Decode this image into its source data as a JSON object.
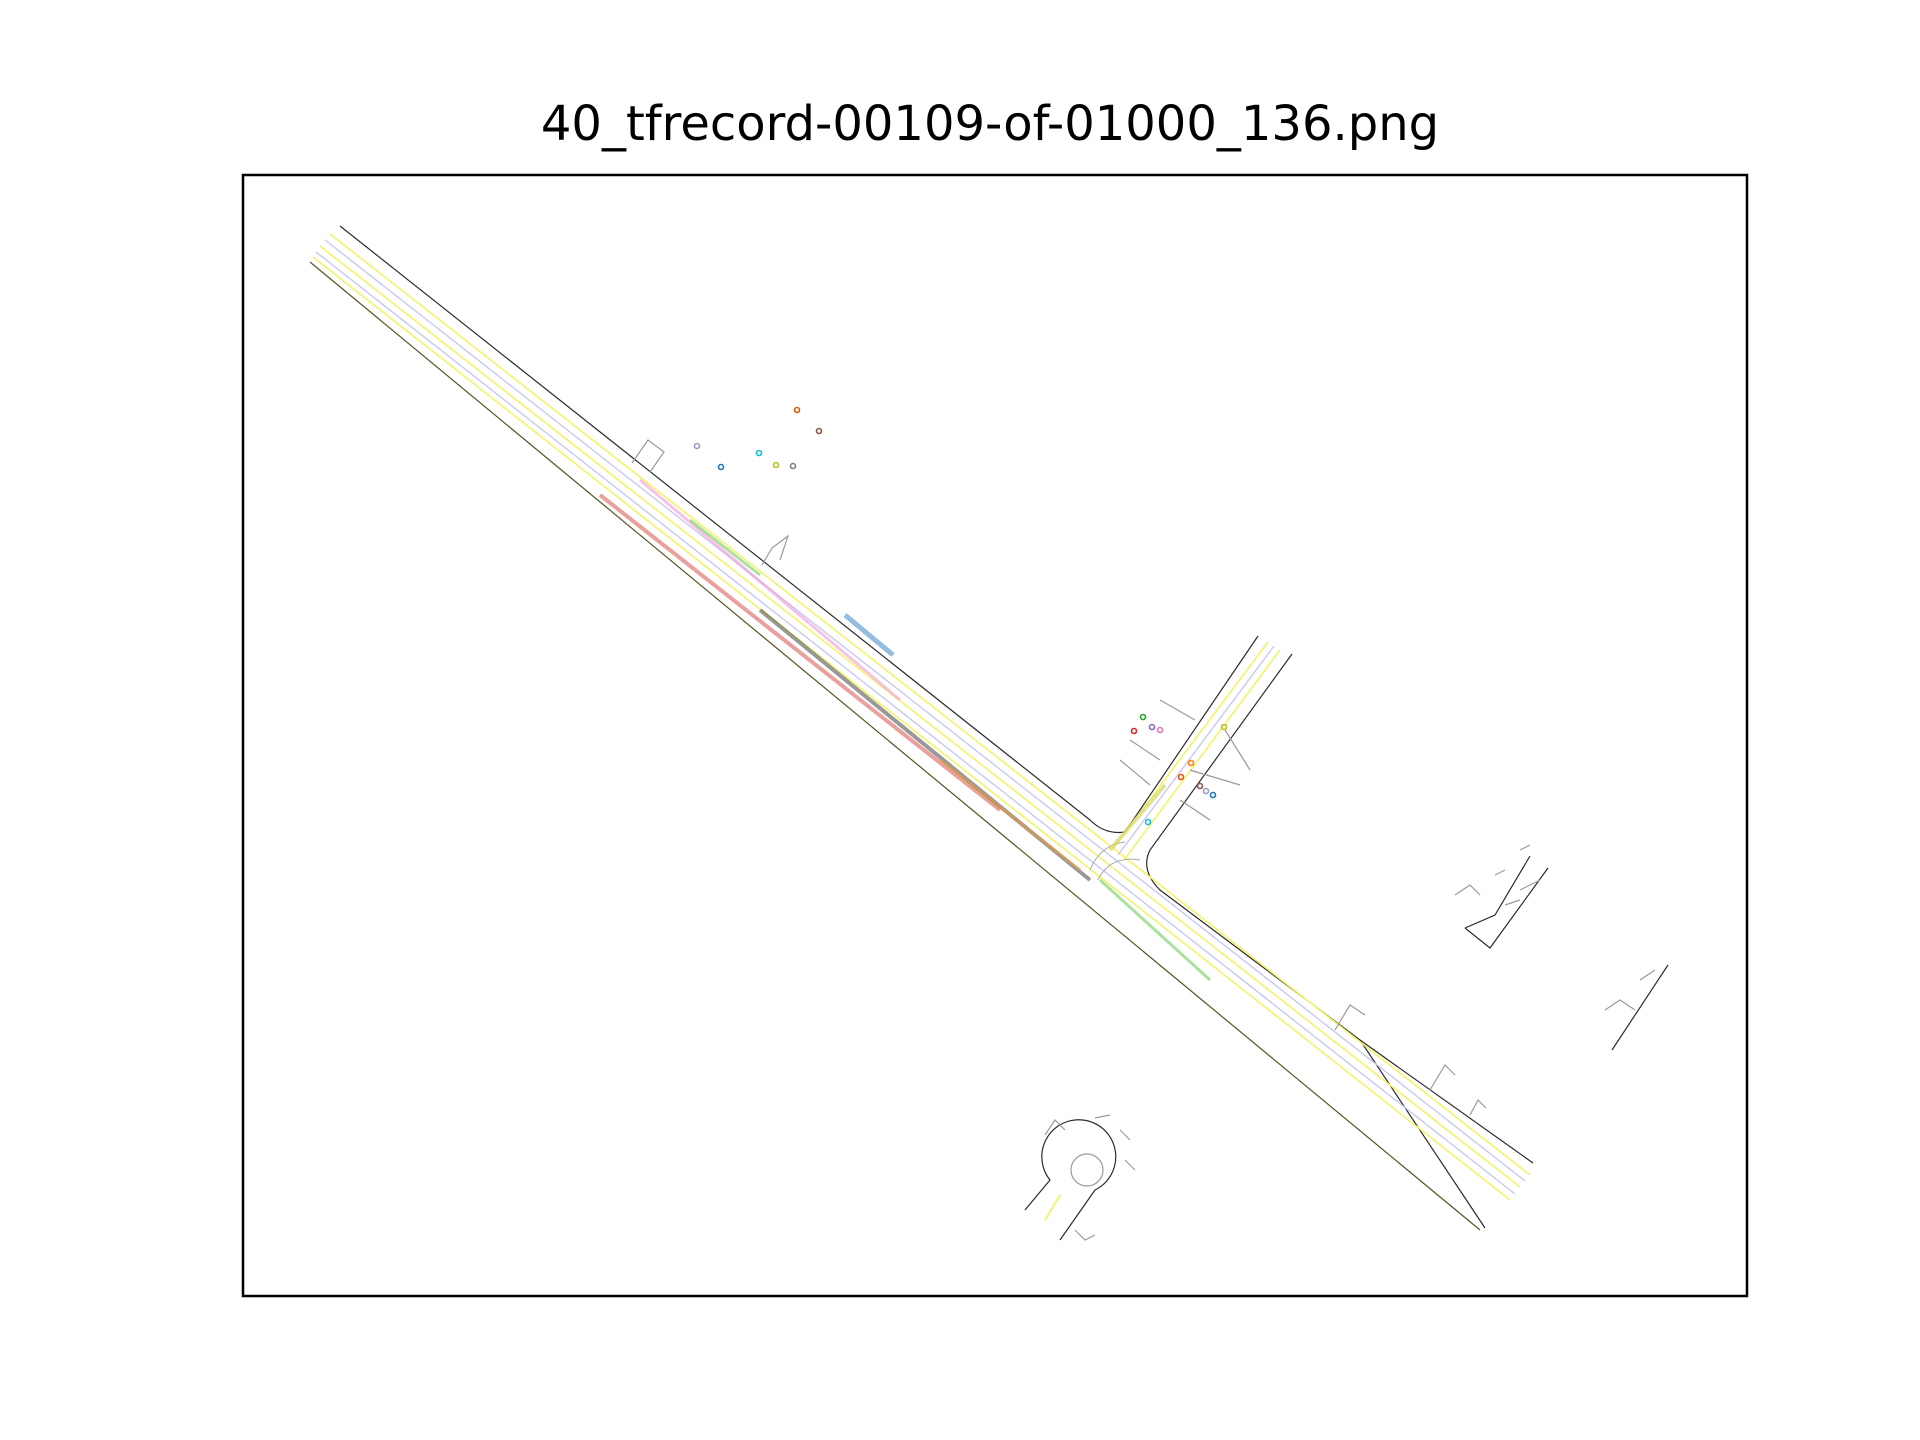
{
  "figure": {
    "title": "40_tfrecord-00109-of-01000_136.png"
  },
  "map": {
    "axes_frame": true,
    "ticks_visible": false,
    "colors": {
      "road_edge": "#2b2b2b",
      "lane_center": "#c7c9f2",
      "road_line_yellow": "#f3f36a",
      "crosswalk": "#9a9a9a",
      "stop_sign_marker": "#3a6bc9",
      "trajectory_red": "#d9534f",
      "trajectory_green": "#6fce5b",
      "trajectory_pink": "#f39ad6",
      "trajectory_dark": "#555555",
      "trajectory_orange": "#e69b3a",
      "trajectory_blue": "#8ab6dd"
    },
    "agent_colors": [
      "#e6550d",
      "#8c564b",
      "#9e9ac8",
      "#1f77b4",
      "#17becf",
      "#bcbd22",
      "#7f7f7f",
      "#d62728",
      "#2ca02c",
      "#9467bd",
      "#e377c2",
      "#ff7f0e"
    ]
  }
}
